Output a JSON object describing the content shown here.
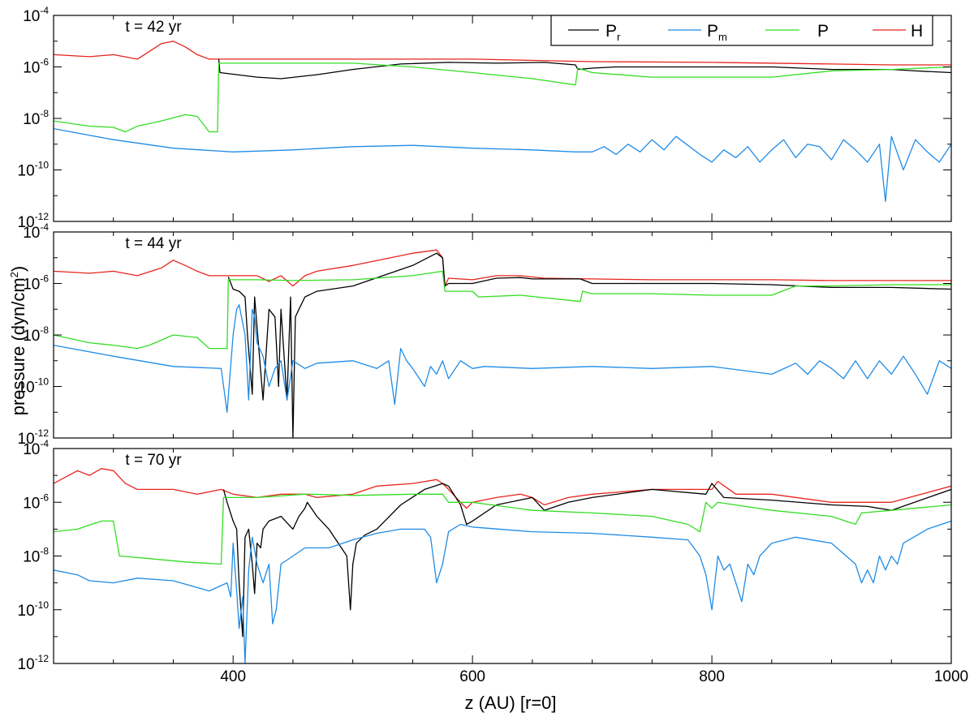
{
  "colors": {
    "P_r": "#000000",
    "P_m": "#1f8ce6",
    "P": "#33dd22",
    "H": "#e8231c"
  },
  "ylabel": {
    "main": "pressure (dyn/cm",
    "sup": "2",
    "tail": ")"
  },
  "xlabel": "z (AU) [r=0]",
  "xticks": [
    "400",
    "600",
    "800",
    "1000"
  ],
  "ytick_labels": [
    {
      "base": "10",
      "exp": "-4"
    },
    {
      "base": "10",
      "exp": "-6"
    },
    {
      "base": "10",
      "exp": "-8"
    },
    {
      "base": "10",
      "exp": "-10"
    },
    {
      "base": "10",
      "exp": "-12"
    }
  ],
  "legend": [
    {
      "key": "P_r",
      "base": "P",
      "sub": "r"
    },
    {
      "key": "P_m",
      "base": "P",
      "sub": "m"
    },
    {
      "key": "P",
      "base": "P",
      "sub": ""
    },
    {
      "key": "H",
      "base": "H",
      "sub": ""
    }
  ],
  "chart_data": [
    {
      "type": "line",
      "title": "t = 42 yr",
      "xlim": [
        250,
        1000
      ],
      "ylim": [
        1e-12,
        0.0001
      ],
      "yscale": "log",
      "series": [
        {
          "key": "H",
          "name": "H",
          "x": [
            250,
            280,
            300,
            320,
            330,
            340,
            350,
            360,
            370,
            380,
            390,
            420,
            500,
            600,
            700,
            800,
            900,
            950,
            1000
          ],
          "y": [
            3e-06,
            2.5e-06,
            3e-06,
            2e-06,
            4e-06,
            8e-06,
            1e-05,
            6e-06,
            3e-06,
            2e-06,
            2e-06,
            2e-06,
            2e-06,
            2e-06,
            1.6e-06,
            1.5e-06,
            1.3e-06,
            1.2e-06,
            1.2e-06
          ]
        },
        {
          "key": "P_r",
          "name": "P_r",
          "x": [
            388,
            389,
            420,
            440,
            470,
            500,
            540,
            580,
            620,
            660,
            686,
            688,
            700,
            720,
            750,
            800,
            850,
            900,
            950,
            970,
            1000
          ],
          "y": [
            2e-06,
            6e-07,
            4e-07,
            3.5e-07,
            5e-07,
            8e-07,
            1.3e-06,
            1.5e-06,
            1.4e-06,
            1.5e-06,
            1.2e-06,
            8e-07,
            9e-07,
            1e-06,
            1e-06,
            1e-06,
            1e-06,
            8e-07,
            8e-07,
            7e-07,
            6e-07
          ]
        },
        {
          "key": "P",
          "name": "P",
          "x": [
            250,
            280,
            300,
            310,
            320,
            340,
            360,
            370,
            380,
            387,
            388,
            400,
            450,
            500,
            550,
            600,
            650,
            686,
            688,
            700,
            750,
            800,
            850,
            900,
            950,
            1000
          ],
          "y": [
            8e-09,
            5e-09,
            4.5e-09,
            3e-09,
            5e-09,
            8e-09,
            1.4e-08,
            1.2e-08,
            3e-09,
            3e-09,
            1.4e-06,
            1.4e-06,
            1.4e-06,
            1.4e-06,
            1e-06,
            6e-07,
            3.5e-07,
            2e-07,
            9e-07,
            6e-07,
            4e-07,
            4e-07,
            4e-07,
            7e-07,
            8e-07,
            1e-06
          ]
        },
        {
          "key": "P_m",
          "name": "P_m",
          "x": [
            250,
            300,
            350,
            400,
            450,
            500,
            550,
            600,
            650,
            686,
            700,
            710,
            720,
            730,
            740,
            750,
            760,
            770,
            780,
            790,
            800,
            810,
            820,
            830,
            840,
            850,
            860,
            870,
            880,
            890,
            900,
            910,
            920,
            930,
            940,
            945,
            950,
            960,
            970,
            980,
            990,
            1000
          ],
          "y": [
            4e-09,
            1.5e-09,
            7e-10,
            5e-10,
            6e-10,
            8e-10,
            9e-10,
            7e-10,
            6e-10,
            5e-10,
            5e-10,
            8e-10,
            4e-10,
            1e-09,
            5e-10,
            1.5e-09,
            6e-10,
            2e-09,
            9e-10,
            4e-10,
            2e-10,
            6e-10,
            3e-10,
            8e-10,
            2e-10,
            6e-10,
            1.5e-09,
            3e-10,
            1e-09,
            8e-10,
            2.5e-10,
            1.5e-09,
            6e-10,
            2e-10,
            1e-09,
            6e-12,
            2e-09,
            1e-10,
            1.5e-09,
            5e-10,
            2e-10,
            1e-09
          ]
        }
      ]
    },
    {
      "type": "line",
      "title": "t = 44 yr",
      "xlim": [
        250,
        1000
      ],
      "ylim": [
        1e-12,
        0.0001
      ],
      "yscale": "log",
      "series": [
        {
          "key": "H",
          "name": "H",
          "x": [
            250,
            280,
            300,
            320,
            340,
            350,
            360,
            370,
            380,
            390,
            400,
            420,
            430,
            440,
            450,
            460,
            470,
            500,
            550,
            570,
            575,
            577,
            580,
            600,
            620,
            640,
            660,
            700,
            750,
            800,
            850,
            900,
            950,
            1000
          ],
          "y": [
            3e-06,
            2.5e-06,
            3e-06,
            2e-06,
            4e-06,
            8e-06,
            5e-06,
            3e-06,
            2e-06,
            2e-06,
            2e-06,
            2e-06,
            1.2e-06,
            2e-06,
            8e-07,
            2e-06,
            3e-06,
            5e-06,
            1.5e-05,
            2e-05,
            1e-05,
            8e-07,
            1.6e-06,
            1.4e-06,
            2e-06,
            2e-06,
            1.6e-06,
            1.5e-06,
            1.4e-06,
            1.4e-06,
            1.4e-06,
            1.3e-06,
            1.3e-06,
            1.3e-06
          ]
        },
        {
          "key": "P_r",
          "name": "P_r",
          "x": [
            396,
            400,
            405,
            410,
            412,
            416,
            418,
            420,
            425,
            430,
            435,
            438,
            440,
            445,
            448,
            450,
            452,
            455,
            460,
            470,
            500,
            550,
            570,
            575,
            577,
            580,
            600,
            620,
            640,
            650,
            690,
            700,
            750,
            800,
            850,
            900,
            950,
            1000
          ],
          "y": [
            1.8e-06,
            6e-07,
            5e-07,
            3e-07,
            1e-08,
            5e-11,
            3e-07,
            2e-08,
            3e-11,
            1e-07,
            5e-08,
            1e-10,
            1e-07,
            3e-11,
            3e-07,
            1e-12,
            5e-08,
            1e-07,
            3e-07,
            5e-07,
            8e-07,
            5e-06,
            1.5e-05,
            1e-05,
            8e-07,
            1e-06,
            1e-06,
            1.6e-06,
            1.7e-06,
            1.5e-06,
            1.5e-06,
            1e-06,
            1e-06,
            1e-06,
            9e-07,
            7e-07,
            7e-07,
            6e-07
          ]
        },
        {
          "key": "P",
          "name": "P",
          "x": [
            250,
            280,
            300,
            320,
            330,
            350,
            370,
            380,
            385,
            395,
            396,
            420,
            450,
            500,
            550,
            575,
            577,
            580,
            600,
            605,
            640,
            690,
            692,
            700,
            750,
            800,
            850,
            870,
            900,
            950,
            1000
          ],
          "y": [
            1e-08,
            5e-09,
            4e-09,
            3e-09,
            4e-09,
            1e-08,
            8e-09,
            3e-09,
            3e-09,
            3e-09,
            1.4e-06,
            1.4e-06,
            1.3e-06,
            1.4e-06,
            2e-06,
            3e-06,
            5e-07,
            5e-07,
            5e-07,
            3e-07,
            3.5e-07,
            2e-07,
            5e-07,
            4e-07,
            4e-07,
            3.5e-07,
            3.5e-07,
            8e-07,
            8e-07,
            9e-07,
            9e-07
          ]
        },
        {
          "key": "P_m",
          "name": "P_m",
          "x": [
            250,
            300,
            350,
            390,
            395,
            400,
            403,
            405,
            410,
            413,
            416,
            418,
            420,
            425,
            430,
            435,
            440,
            445,
            450,
            460,
            470,
            500,
            520,
            530,
            535,
            540,
            545,
            550,
            560,
            565,
            570,
            575,
            580,
            590,
            600,
            610,
            650,
            700,
            750,
            800,
            850,
            870,
            880,
            890,
            900,
            910,
            920,
            930,
            940,
            950,
            960,
            970,
            980,
            990,
            1000
          ],
          "y": [
            4e-09,
            1.5e-09,
            6e-10,
            5e-10,
            1e-11,
            1e-08,
            1e-07,
            1.5e-07,
            1e-08,
            3e-11,
            1e-07,
            5e-08,
            5e-09,
            1.5e-09,
            1e-10,
            5e-10,
            1e-09,
            3e-11,
            1e-09,
            5e-10,
            8e-10,
            1e-09,
            5e-10,
            1e-09,
            2e-11,
            3e-09,
            1e-09,
            5e-10,
            1e-10,
            6e-10,
            3e-10,
            1e-09,
            2e-10,
            1e-09,
            5e-10,
            6e-10,
            5e-10,
            6e-10,
            5e-10,
            6e-10,
            3e-10,
            8e-10,
            3e-10,
            1e-09,
            5e-10,
            2e-10,
            1e-09,
            2e-10,
            1e-09,
            3e-10,
            1.5e-09,
            3e-10,
            5e-11,
            1e-09,
            5e-10
          ]
        }
      ]
    },
    {
      "type": "line",
      "title": "t = 70 yr",
      "xlim": [
        250,
        1000
      ],
      "ylim": [
        1e-12,
        0.0001
      ],
      "yscale": "log",
      "series": [
        {
          "key": "H",
          "name": "H",
          "x": [
            250,
            270,
            280,
            290,
            300,
            310,
            320,
            350,
            370,
            390,
            400,
            420,
            440,
            460,
            470,
            500,
            520,
            550,
            570,
            575,
            580,
            590,
            595,
            600,
            620,
            640,
            650,
            660,
            680,
            700,
            750,
            800,
            805,
            820,
            850,
            900,
            950,
            1000
          ],
          "y": [
            5e-06,
            1.5e-05,
            1e-05,
            1.8e-05,
            1.5e-05,
            5e-06,
            3e-06,
            3e-06,
            2e-06,
            3e-06,
            2e-06,
            1.5e-06,
            2e-06,
            2e-06,
            1.5e-06,
            2e-06,
            4e-06,
            5e-06,
            7e-06,
            5e-06,
            3e-06,
            1e-06,
            6e-07,
            1e-06,
            1.5e-06,
            2e-06,
            1.5e-06,
            8e-07,
            1.5e-06,
            2e-06,
            3e-06,
            3e-06,
            6e-06,
            2e-06,
            2e-06,
            1e-06,
            1e-06,
            4e-06
          ]
        },
        {
          "key": "P_r",
          "name": "P_r",
          "x": [
            392,
            395,
            400,
            403,
            405,
            408,
            410,
            413,
            416,
            418,
            420,
            423,
            425,
            430,
            440,
            450,
            455,
            460,
            462,
            470,
            480,
            495,
            498,
            500,
            503,
            510,
            520,
            540,
            560,
            575,
            580,
            590,
            595,
            600,
            620,
            650,
            660,
            680,
            700,
            750,
            795,
            800,
            810,
            850,
            900,
            930,
            950,
            1000
          ],
          "y": [
            3e-06,
            1e-06,
            2e-07,
            1e-07,
            1e-09,
            1e-11,
            5e-08,
            1e-07,
            5e-09,
            4e-10,
            3e-08,
            2e-08,
            1e-07,
            2e-07,
            3e-07,
            1e-07,
            3e-07,
            6e-07,
            1e-06,
            3e-07,
            1e-07,
            1e-08,
            1e-10,
            5e-09,
            3e-08,
            6e-08,
            1e-07,
            8e-07,
            3e-06,
            5e-06,
            4e-06,
            8e-07,
            1.5e-07,
            2e-07,
            8e-07,
            1.5e-06,
            5e-07,
            1e-06,
            1.5e-06,
            3e-06,
            2e-06,
            5e-06,
            1.5e-06,
            1.2e-06,
            8e-07,
            7e-07,
            5e-07,
            3e-06
          ]
        },
        {
          "key": "P",
          "name": "P",
          "x": [
            250,
            270,
            290,
            300,
            305,
            330,
            360,
            390,
            392,
            420,
            460,
            465,
            500,
            550,
            575,
            580,
            600,
            650,
            700,
            750,
            780,
            790,
            795,
            800,
            805,
            850,
            900,
            920,
            925,
            950,
            1000
          ],
          "y": [
            8e-08,
            1e-07,
            2e-07,
            2e-07,
            1e-08,
            8e-09,
            6e-09,
            5e-09,
            1.5e-06,
            1.5e-06,
            2e-06,
            2e-06,
            1.8e-06,
            2e-06,
            2e-06,
            1e-06,
            1e-06,
            5e-07,
            4e-07,
            3e-07,
            1.5e-07,
            8e-08,
            1e-06,
            6e-07,
            1e-06,
            5e-07,
            3e-07,
            1.5e-07,
            4e-07,
            5e-07,
            8e-07
          ]
        },
        {
          "key": "P_m",
          "name": "P_m",
          "x": [
            250,
            270,
            280,
            300,
            320,
            350,
            380,
            395,
            398,
            400,
            403,
            405,
            408,
            410,
            413,
            416,
            420,
            425,
            430,
            433,
            436,
            440,
            450,
            460,
            480,
            500,
            520,
            540,
            560,
            565,
            570,
            575,
            580,
            590,
            600,
            650,
            700,
            750,
            780,
            790,
            795,
            800,
            805,
            810,
            815,
            820,
            825,
            830,
            835,
            840,
            850,
            870,
            900,
            920,
            925,
            930,
            935,
            940,
            945,
            950,
            955,
            960,
            980,
            1000
          ],
          "y": [
            3e-09,
            2e-09,
            1.2e-09,
            1e-09,
            1.5e-09,
            1.2e-09,
            5e-10,
            1e-09,
            3e-10,
            3e-08,
            5e-10,
            2e-11,
            3e-10,
            1e-12,
            3e-09,
            5e-08,
            5e-09,
            1e-09,
            5e-09,
            3e-11,
            1e-10,
            5e-09,
            1e-08,
            2e-08,
            2e-08,
            4e-08,
            7e-08,
            1e-07,
            1e-07,
            5e-08,
            1e-09,
            5e-09,
            8e-08,
            1.5e-07,
            1.2e-07,
            8e-08,
            7e-08,
            5e-08,
            4e-08,
            1e-08,
            2e-09,
            1e-10,
            1e-08,
            3e-09,
            5e-09,
            1e-09,
            2e-10,
            5e-09,
            2e-09,
            1e-08,
            3e-08,
            5e-08,
            3e-08,
            5e-09,
            1e-09,
            3e-09,
            1e-09,
            1e-08,
            3e-09,
            1e-08,
            5e-09,
            3e-08,
            1e-07,
            2e-07
          ]
        }
      ]
    }
  ]
}
